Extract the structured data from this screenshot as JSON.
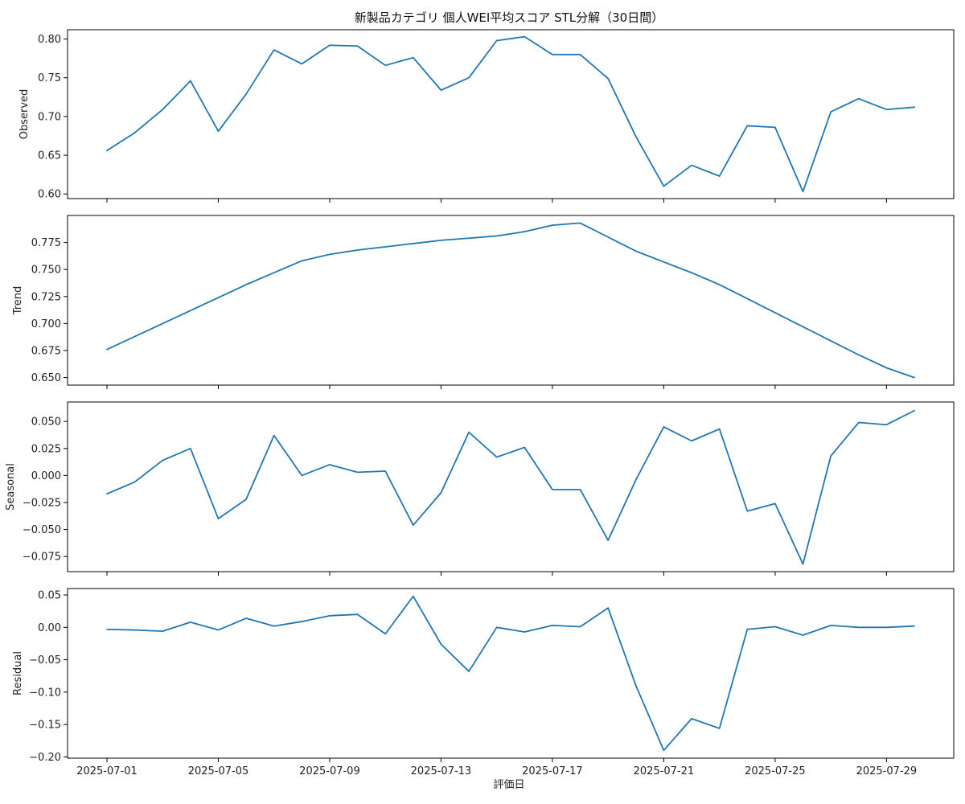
{
  "title": "新製品カテゴリ 個人WEI平均スコア STL分解（30日間）",
  "xlabel": "評価日",
  "line_color": "#1f77b4",
  "chart_data": [
    {
      "type": "line",
      "ylabel": "Observed",
      "x": [
        "2025-07-01",
        "2025-07-02",
        "2025-07-03",
        "2025-07-04",
        "2025-07-05",
        "2025-07-06",
        "2025-07-07",
        "2025-07-08",
        "2025-07-09",
        "2025-07-10",
        "2025-07-11",
        "2025-07-12",
        "2025-07-13",
        "2025-07-14",
        "2025-07-15",
        "2025-07-16",
        "2025-07-17",
        "2025-07-18",
        "2025-07-19",
        "2025-07-20",
        "2025-07-21",
        "2025-07-22",
        "2025-07-23",
        "2025-07-24",
        "2025-07-25",
        "2025-07-26",
        "2025-07-27",
        "2025-07-28",
        "2025-07-29",
        "2025-07-30"
      ],
      "values": [
        0.656,
        0.679,
        0.709,
        0.746,
        0.681,
        0.729,
        0.786,
        0.768,
        0.792,
        0.791,
        0.766,
        0.776,
        0.734,
        0.75,
        0.798,
        0.803,
        0.78,
        0.78,
        0.749,
        0.674,
        0.61,
        0.637,
        0.623,
        0.688,
        0.686,
        0.603,
        0.706,
        0.723,
        0.709,
        0.712
      ],
      "ylim": [
        0.594,
        0.812
      ],
      "yticks": [
        "0.60",
        "0.65",
        "0.70",
        "0.75",
        "0.80"
      ],
      "ytick_values": [
        0.6,
        0.65,
        0.7,
        0.75,
        0.8
      ],
      "xticks": [
        "2025-07-01",
        "2025-07-05",
        "2025-07-09",
        "2025-07-13",
        "2025-07-17",
        "2025-07-21",
        "2025-07-25",
        "2025-07-29"
      ]
    },
    {
      "type": "line",
      "ylabel": "Trend",
      "x": [
        "2025-07-01",
        "2025-07-02",
        "2025-07-03",
        "2025-07-04",
        "2025-07-05",
        "2025-07-06",
        "2025-07-07",
        "2025-07-08",
        "2025-07-09",
        "2025-07-10",
        "2025-07-11",
        "2025-07-12",
        "2025-07-13",
        "2025-07-14",
        "2025-07-15",
        "2025-07-16",
        "2025-07-17",
        "2025-07-18",
        "2025-07-19",
        "2025-07-20",
        "2025-07-21",
        "2025-07-22",
        "2025-07-23",
        "2025-07-24",
        "2025-07-25",
        "2025-07-26",
        "2025-07-27",
        "2025-07-28",
        "2025-07-29",
        "2025-07-30"
      ],
      "values": [
        0.676,
        0.688,
        0.7,
        0.712,
        0.724,
        0.736,
        0.747,
        0.758,
        0.764,
        0.768,
        0.771,
        0.774,
        0.777,
        0.779,
        0.781,
        0.785,
        0.791,
        0.793,
        0.78,
        0.767,
        0.757,
        0.747,
        0.736,
        0.723,
        0.71,
        0.697,
        0.684,
        0.671,
        0.659,
        0.65
      ],
      "ylim": [
        0.643,
        0.8
      ],
      "yticks": [
        "0.650",
        "0.675",
        "0.700",
        "0.725",
        "0.750",
        "0.775"
      ],
      "ytick_values": [
        0.65,
        0.675,
        0.7,
        0.725,
        0.75,
        0.775
      ],
      "xticks": [
        "2025-07-01",
        "2025-07-05",
        "2025-07-09",
        "2025-07-13",
        "2025-07-17",
        "2025-07-21",
        "2025-07-25",
        "2025-07-29"
      ]
    },
    {
      "type": "line",
      "ylabel": "Seasonal",
      "x": [
        "2025-07-01",
        "2025-07-02",
        "2025-07-03",
        "2025-07-04",
        "2025-07-05",
        "2025-07-06",
        "2025-07-07",
        "2025-07-08",
        "2025-07-09",
        "2025-07-10",
        "2025-07-11",
        "2025-07-12",
        "2025-07-13",
        "2025-07-14",
        "2025-07-15",
        "2025-07-16",
        "2025-07-17",
        "2025-07-18",
        "2025-07-19",
        "2025-07-20",
        "2025-07-21",
        "2025-07-22",
        "2025-07-23",
        "2025-07-24",
        "2025-07-25",
        "2025-07-26",
        "2025-07-27",
        "2025-07-28",
        "2025-07-29",
        "2025-07-30"
      ],
      "values": [
        -0.017,
        -0.006,
        0.014,
        0.025,
        -0.04,
        -0.022,
        0.037,
        0.0,
        0.01,
        0.003,
        0.004,
        -0.046,
        -0.016,
        0.04,
        0.017,
        0.026,
        -0.013,
        -0.013,
        -0.06,
        -0.004,
        0.045,
        0.032,
        0.043,
        -0.033,
        -0.026,
        -0.082,
        0.018,
        0.049,
        0.047,
        0.06
      ],
      "ylim": [
        -0.089,
        0.068
      ],
      "yticks": [
        "0.050",
        "0.025",
        "0.000",
        "−0.025",
        "−0.050",
        "−0.075"
      ],
      "ytick_values": [
        0.05,
        0.025,
        0.0,
        -0.025,
        -0.05,
        -0.075
      ],
      "xticks": [
        "2025-07-01",
        "2025-07-05",
        "2025-07-09",
        "2025-07-13",
        "2025-07-17",
        "2025-07-21",
        "2025-07-25",
        "2025-07-29"
      ]
    },
    {
      "type": "line",
      "ylabel": "Residual",
      "x": [
        "2025-07-01",
        "2025-07-02",
        "2025-07-03",
        "2025-07-04",
        "2025-07-05",
        "2025-07-06",
        "2025-07-07",
        "2025-07-08",
        "2025-07-09",
        "2025-07-10",
        "2025-07-11",
        "2025-07-12",
        "2025-07-13",
        "2025-07-14",
        "2025-07-15",
        "2025-07-16",
        "2025-07-17",
        "2025-07-18",
        "2025-07-19",
        "2025-07-20",
        "2025-07-21",
        "2025-07-22",
        "2025-07-23",
        "2025-07-24",
        "2025-07-25",
        "2025-07-26",
        "2025-07-27",
        "2025-07-28",
        "2025-07-29",
        "2025-07-30"
      ],
      "values": [
        -0.003,
        -0.004,
        -0.006,
        0.008,
        -0.004,
        0.014,
        0.002,
        0.009,
        0.018,
        0.02,
        -0.01,
        0.048,
        -0.026,
        -0.068,
        0.0,
        -0.007,
        0.003,
        0.001,
        0.03,
        -0.09,
        -0.19,
        -0.141,
        -0.156,
        -0.003,
        0.001,
        -0.012,
        0.003,
        0.0,
        0.0,
        0.002
      ],
      "ylim": [
        -0.202,
        0.06
      ],
      "yticks": [
        "0.05",
        "0.00",
        "−0.05",
        "−0.10",
        "−0.15",
        "−0.20"
      ],
      "ytick_values": [
        0.05,
        0.0,
        -0.05,
        -0.1,
        -0.15,
        -0.2
      ],
      "xticks": [
        "2025-07-01",
        "2025-07-05",
        "2025-07-09",
        "2025-07-13",
        "2025-07-17",
        "2025-07-21",
        "2025-07-25",
        "2025-07-29"
      ]
    }
  ]
}
